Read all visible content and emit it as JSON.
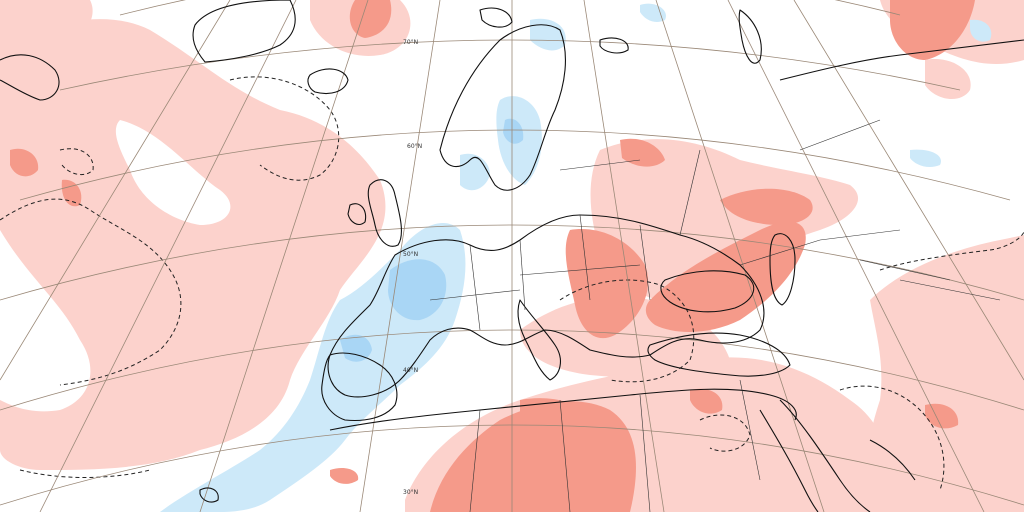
{
  "colors": {
    "background": "#ffffff",
    "warm_light": "#fcd2cc",
    "warm_strong": "#f59a8a",
    "cool_light": "#cde9f9",
    "cool_strong": "#a9d6f5",
    "coastline": "#111111",
    "graticule": "#9a8877"
  },
  "map": {
    "latitude_labels": [
      "70°N",
      "60°N",
      "50°N",
      "40°N",
      "30°N"
    ]
  }
}
